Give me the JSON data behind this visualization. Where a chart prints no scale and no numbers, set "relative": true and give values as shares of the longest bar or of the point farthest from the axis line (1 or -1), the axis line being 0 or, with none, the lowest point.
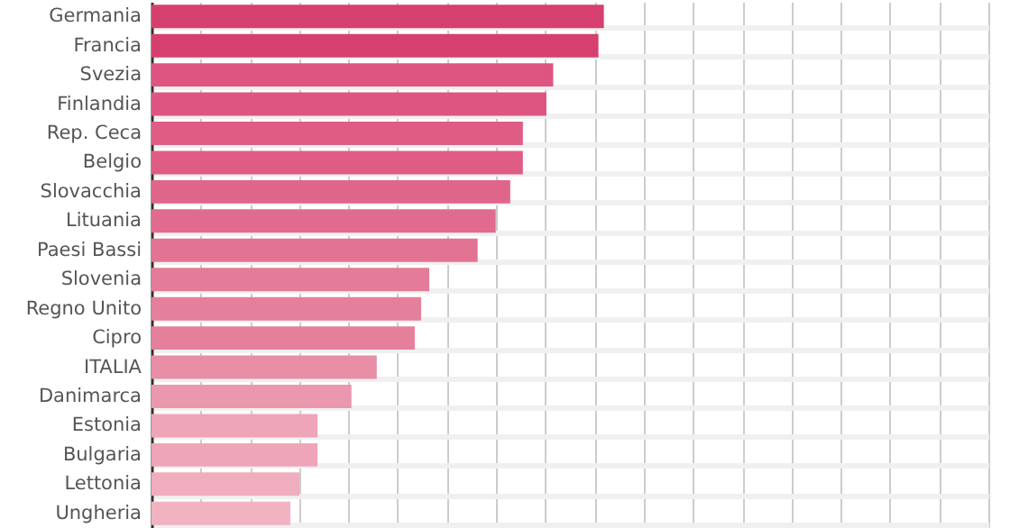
{
  "chart_data": {
    "type": "bar",
    "orientation": "horizontal",
    "relative": true,
    "grid": true,
    "categories": [
      "Germania",
      "Francia",
      "Svezia",
      "Finlandia",
      "Rep. Ceca",
      "Belgio",
      "Slovacchia",
      "Lituania",
      "Paesi Bassi",
      "Slovenia",
      "Regno Unito",
      "Cipro",
      "ITALIA",
      "Danimarca",
      "Estonia",
      "Bulgaria",
      "Lettonia",
      "Ungheria"
    ],
    "values": [
      1,
      0.988,
      0.888,
      0.873,
      0.821,
      0.821,
      0.793,
      0.761,
      0.721,
      0.614,
      0.596,
      0.582,
      0.498,
      0.442,
      0.367,
      0.367,
      0.327,
      0.307
    ],
    "colors": [
      "#d6406f",
      "#d6406f",
      "#dd5580",
      "#dd5580",
      "#df5d85",
      "#df5d85",
      "#e0658a",
      "#e16b8f",
      "#e27393",
      "#e47b98",
      "#e5809c",
      "#e5809c",
      "#e98ea7",
      "#eb97ad",
      "#eea5b7",
      "#eea5b7",
      "#f0adbd",
      "#f1b3c2"
    ]
  }
}
